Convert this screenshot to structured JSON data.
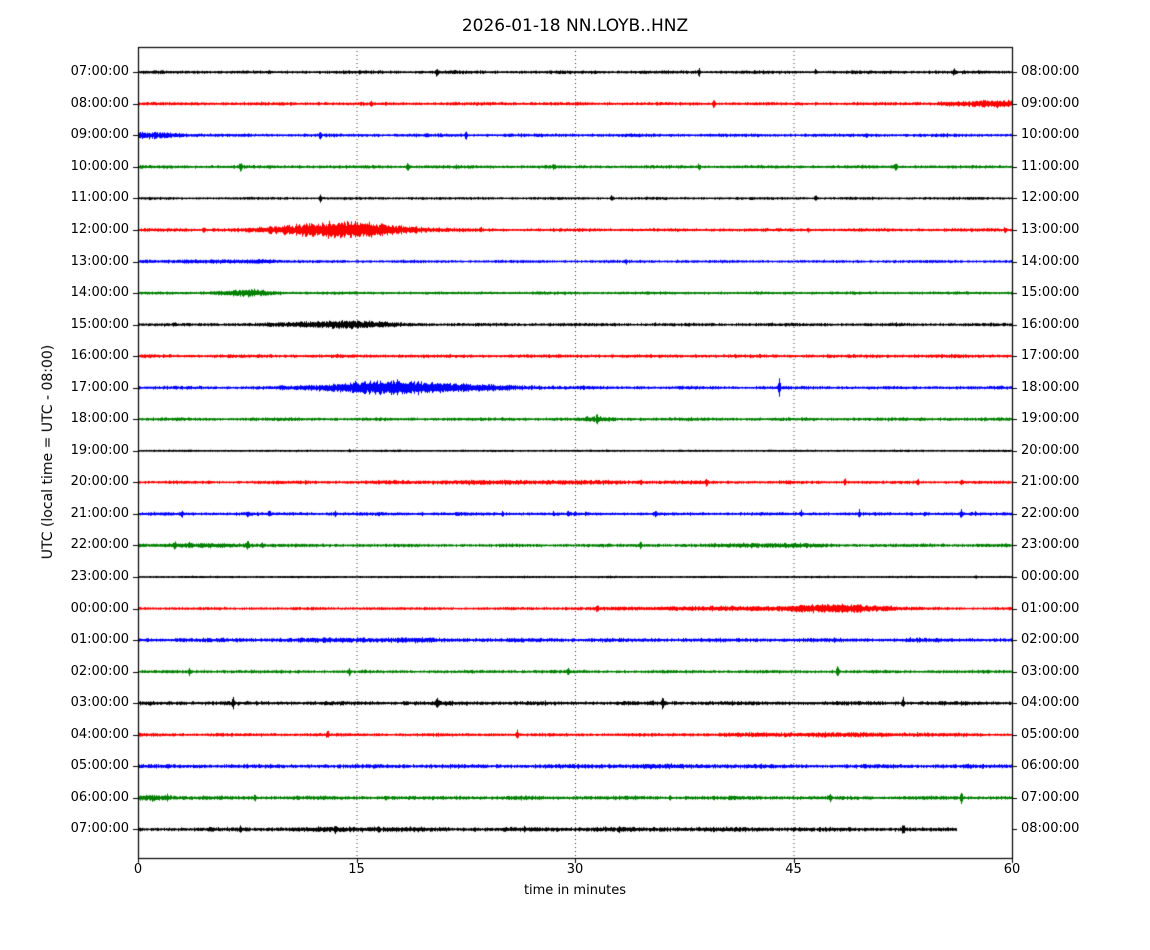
{
  "title": "2026-01-18 NN.LOYB..HNZ",
  "xlabel": "time in minutes",
  "ylabel": "UTC (local time = UTC - 08:00)",
  "colors": {
    "black": "#000000",
    "red": "#ff0000",
    "blue": "#0000ff",
    "green": "#008000"
  },
  "chart_data": {
    "type": "line",
    "variant": "helicorder-dayplot",
    "title": "2026-01-18 NN.LOYB..HNZ",
    "xlabel": "time in minutes",
    "ylabel": "UTC (local time = UTC - 08:00)",
    "x_range_minutes": [
      0,
      60
    ],
    "x_ticks": [
      0,
      15,
      30,
      45,
      60
    ],
    "grid_minutes": [
      15,
      30,
      45
    ],
    "grid_style": "dotted",
    "minutes_per_row": 60,
    "rows": [
      {
        "left_label": "07:00:00",
        "right_label": "08:00:00",
        "color": "black",
        "base": 1.8,
        "end": 60,
        "spikes": [
          [
            9,
            2.5
          ],
          [
            20.5,
            6
          ],
          [
            38.5,
            5.5
          ],
          [
            46.5,
            4
          ],
          [
            56,
            5.5
          ]
        ],
        "bursts": []
      },
      {
        "left_label": "08:00:00",
        "right_label": "09:00:00",
        "color": "red",
        "base": 1.8,
        "end": 60,
        "spikes": [
          [
            16,
            5
          ],
          [
            39.5,
            6.5
          ],
          [
            55.5,
            3
          ]
        ],
        "bursts": [
          [
            59,
            7,
            2.5
          ]
        ]
      },
      {
        "left_label": "09:00:00",
        "right_label": "10:00:00",
        "color": "blue",
        "base": 1.8,
        "end": 60,
        "spikes": [
          [
            12.5,
            5.5
          ],
          [
            22.5,
            6
          ],
          [
            50,
            4.5
          ]
        ],
        "bursts": [
          [
            1,
            4,
            2.5
          ]
        ]
      },
      {
        "left_label": "10:00:00",
        "right_label": "11:00:00",
        "color": "green",
        "base": 1.8,
        "end": 60,
        "spikes": [
          [
            7,
            7
          ],
          [
            18.5,
            6
          ],
          [
            28.5,
            4.5
          ],
          [
            38.5,
            5
          ],
          [
            52,
            7
          ]
        ],
        "bursts": []
      },
      {
        "left_label": "11:00:00",
        "right_label": "12:00:00",
        "color": "black",
        "base": 1.5,
        "end": 60,
        "spikes": [
          [
            12.5,
            5
          ],
          [
            32.5,
            5
          ],
          [
            46.5,
            4
          ]
        ],
        "bursts": []
      },
      {
        "left_label": "12:00:00",
        "right_label": "13:00:00",
        "color": "red",
        "base": 1.8,
        "end": 60,
        "spikes": [
          [
            4.5,
            5
          ],
          [
            23.5,
            5.5
          ],
          [
            46,
            3.5
          ],
          [
            59.5,
            4
          ]
        ],
        "bursts": [
          [
            14,
            9,
            8
          ]
        ]
      },
      {
        "left_label": "13:00:00",
        "right_label": "14:00:00",
        "color": "blue",
        "base": 1.6,
        "end": 60,
        "spikes": [
          [
            33.5,
            4
          ],
          [
            37,
            2.5
          ]
        ],
        "bursts": [
          [
            3.5,
            7,
            1
          ],
          [
            8.5,
            3,
            1.2
          ]
        ]
      },
      {
        "left_label": "14:00:00",
        "right_label": "15:00:00",
        "color": "green",
        "base": 1.6,
        "end": 60,
        "spikes": [],
        "bursts": [
          [
            7.5,
            4,
            2.8
          ]
        ]
      },
      {
        "left_label": "15:00:00",
        "right_label": "16:00:00",
        "color": "black",
        "base": 1.8,
        "end": 60,
        "spikes": [
          [
            35.5,
            3
          ],
          [
            52,
            3.5
          ]
        ],
        "bursts": [
          [
            14,
            7,
            3.5
          ]
        ]
      },
      {
        "left_label": "16:00:00",
        "right_label": "17:00:00",
        "color": "red",
        "base": 1.9,
        "end": 60,
        "spikes": [],
        "bursts": []
      },
      {
        "left_label": "17:00:00",
        "right_label": "18:00:00",
        "color": "blue",
        "base": 1.8,
        "end": 60,
        "spikes": [
          [
            44,
            16
          ]
        ],
        "bursts": [
          [
            17,
            9,
            6
          ],
          [
            22,
            12,
            1.8
          ]
        ]
      },
      {
        "left_label": "18:00:00",
        "right_label": "19:00:00",
        "color": "green",
        "base": 1.8,
        "end": 60,
        "spikes": [
          [
            31.5,
            7
          ]
        ],
        "bursts": [
          [
            31.5,
            2,
            1.5
          ]
        ]
      },
      {
        "left_label": "19:00:00",
        "right_label": "20:00:00",
        "color": "black",
        "base": 1.2,
        "end": 60,
        "spikes": [
          [
            14.5,
            2.5
          ]
        ],
        "bursts": []
      },
      {
        "left_label": "20:00:00",
        "right_label": "21:00:00",
        "color": "red",
        "base": 1.7,
        "end": 60,
        "spikes": [
          [
            11.5,
            3.5
          ],
          [
            23.5,
            3.5
          ],
          [
            34.5,
            3.5
          ],
          [
            39,
            5
          ],
          [
            44,
            2.5
          ],
          [
            48.5,
            5
          ],
          [
            53.5,
            5
          ],
          [
            56.5,
            4.5
          ]
        ],
        "bursts": [
          [
            27,
            20,
            1.2
          ]
        ]
      },
      {
        "left_label": "21:00:00",
        "right_label": "22:00:00",
        "color": "blue",
        "base": 1.8,
        "end": 60,
        "spikes": [
          [
            3,
            4.5
          ],
          [
            7.5,
            4
          ],
          [
            9,
            5
          ],
          [
            13.5,
            4.5
          ],
          [
            16.5,
            4
          ],
          [
            19.5,
            3
          ],
          [
            22,
            3.5
          ],
          [
            25,
            3.5
          ],
          [
            28.5,
            4.5
          ],
          [
            29.5,
            4.5
          ],
          [
            35.5,
            4.5
          ],
          [
            45.5,
            5
          ],
          [
            49.5,
            5
          ],
          [
            54,
            4.5
          ],
          [
            56.5,
            6
          ],
          [
            57.5,
            4
          ]
        ],
        "bursts": []
      },
      {
        "left_label": "22:00:00",
        "right_label": "23:00:00",
        "color": "green",
        "base": 1.8,
        "end": 60,
        "spikes": [
          [
            2.5,
            6.5
          ],
          [
            3.5,
            4.5
          ],
          [
            7.5,
            8
          ],
          [
            8.5,
            5
          ],
          [
            34.5,
            5.5
          ]
        ],
        "bursts": [
          [
            5,
            8,
            1.2
          ],
          [
            43.5,
            6,
            1.5
          ]
        ]
      },
      {
        "left_label": "23:00:00",
        "right_label": "00:00:00",
        "color": "black",
        "base": 1.2,
        "end": 60,
        "spikes": [
          [
            57.5,
            3
          ]
        ],
        "bursts": []
      },
      {
        "left_label": "00:00:00",
        "right_label": "01:00:00",
        "color": "red",
        "base": 1.6,
        "end": 60,
        "spikes": [
          [
            31.5,
            6.5
          ],
          [
            50,
            5
          ]
        ],
        "bursts": [
          [
            41,
            16,
            1.4
          ],
          [
            48,
            7,
            3.2
          ]
        ]
      },
      {
        "left_label": "01:00:00",
        "right_label": "02:00:00",
        "color": "blue",
        "base": 2.2,
        "end": 60,
        "spikes": [
          [
            3,
            3
          ],
          [
            53,
            3.5
          ]
        ],
        "bursts": [
          [
            16,
            10,
            1
          ]
        ]
      },
      {
        "left_label": "02:00:00",
        "right_label": "03:00:00",
        "color": "green",
        "base": 1.8,
        "end": 60,
        "spikes": [
          [
            3.5,
            4.5
          ],
          [
            11,
            3.5
          ],
          [
            14.5,
            5.5
          ],
          [
            29.5,
            5.5
          ],
          [
            48,
            8.5
          ]
        ],
        "bursts": []
      },
      {
        "left_label": "03:00:00",
        "right_label": "04:00:00",
        "color": "black",
        "base": 2.2,
        "end": 60,
        "spikes": [
          [
            6.5,
            8
          ],
          [
            20.5,
            7
          ],
          [
            36,
            8
          ],
          [
            52.5,
            7
          ]
        ],
        "bursts": []
      },
      {
        "left_label": "04:00:00",
        "right_label": "05:00:00",
        "color": "red",
        "base": 1.8,
        "end": 60,
        "spikes": [
          [
            13,
            6.5
          ],
          [
            26,
            6.5
          ],
          [
            51,
            3.5
          ],
          [
            53.5,
            3.5
          ]
        ],
        "bursts": [
          [
            47,
            14,
            1.2
          ]
        ]
      },
      {
        "left_label": "05:00:00",
        "right_label": "06:00:00",
        "color": "blue",
        "base": 2.2,
        "end": 60,
        "spikes": [],
        "bursts": [
          [
            35,
            10,
            0.7
          ]
        ]
      },
      {
        "left_label": "06:00:00",
        "right_label": "07:00:00",
        "color": "green",
        "base": 2.1,
        "end": 60,
        "spikes": [
          [
            2,
            5.5
          ],
          [
            4.5,
            3.5
          ],
          [
            8,
            4.5
          ],
          [
            17,
            3.5
          ],
          [
            36.5,
            4.5
          ],
          [
            47.5,
            6
          ],
          [
            56.5,
            7.5
          ]
        ],
        "bursts": [
          [
            0.8,
            3,
            2.3
          ]
        ]
      },
      {
        "left_label": "07:00:00",
        "right_label": "08:00:00",
        "color": "black",
        "base": 2.1,
        "end": 56.2,
        "spikes": [
          [
            7,
            5.5
          ],
          [
            13.5,
            6.5
          ],
          [
            16.5,
            4.5
          ],
          [
            26.5,
            5.5
          ],
          [
            33,
            4.5
          ],
          [
            41,
            4.5
          ],
          [
            45,
            3.5
          ],
          [
            52.5,
            7.5
          ]
        ],
        "bursts": [
          [
            15,
            8,
            1
          ],
          [
            34,
            30,
            0.6
          ]
        ]
      }
    ]
  }
}
